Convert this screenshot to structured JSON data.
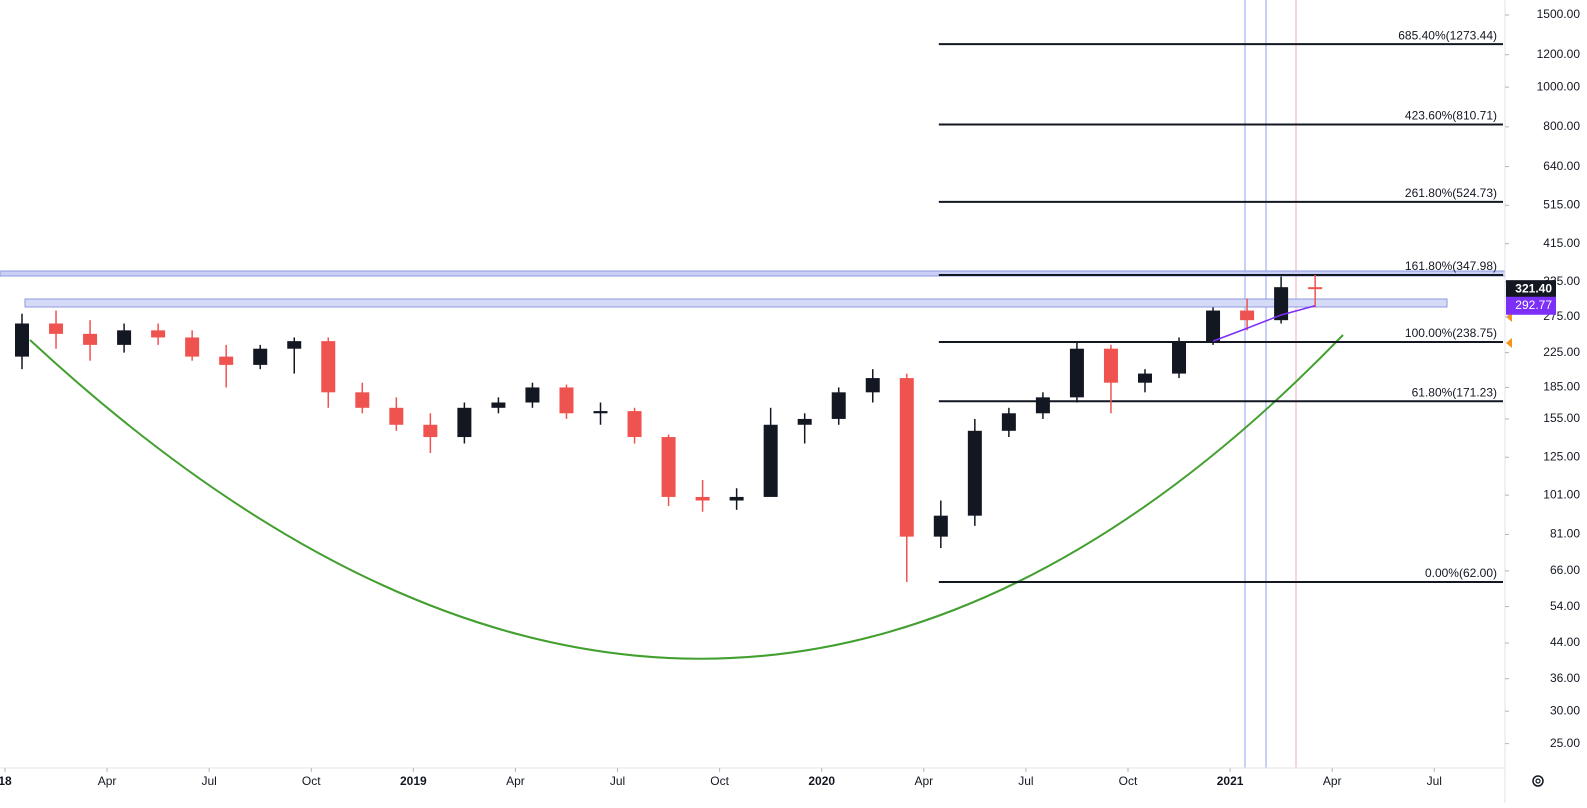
{
  "chart_data": {
    "type": "candlestick",
    "log_scale": true,
    "ylim": [
      21.8,
      1632
    ],
    "yticks": [
      {
        "value": 1500,
        "label": "1500.00"
      },
      {
        "value": 1200,
        "label": "1200.00"
      },
      {
        "value": 1000,
        "label": "1000.00"
      },
      {
        "value": 800,
        "label": "800.00"
      },
      {
        "value": 640,
        "label": "640.00"
      },
      {
        "value": 515,
        "label": "515.00"
      },
      {
        "value": 415,
        "label": "415.00"
      },
      {
        "value": 335,
        "label": "335.00"
      },
      {
        "value": 275,
        "label": "275.00"
      },
      {
        "value": 225,
        "label": "225.00"
      },
      {
        "value": 185,
        "label": "185.00"
      },
      {
        "value": 155,
        "label": "155.00"
      },
      {
        "value": 125,
        "label": "125.00"
      },
      {
        "value": 101,
        "label": "101.00"
      },
      {
        "value": 81,
        "label": "81.00"
      },
      {
        "value": 66,
        "label": "66.00"
      },
      {
        "value": 54,
        "label": "54.00"
      },
      {
        "value": 44,
        "label": "44.00"
      },
      {
        "value": 36,
        "label": "36.00"
      },
      {
        "value": 30,
        "label": "30.00"
      },
      {
        "value": 25,
        "label": "25.00"
      }
    ],
    "xticks": [
      {
        "value": "2018-01",
        "label": "18"
      },
      {
        "value": "2018-04",
        "label": "Apr"
      },
      {
        "value": "2018-07",
        "label": "Jul"
      },
      {
        "value": "2018-10",
        "label": "Oct"
      },
      {
        "value": "2019-01",
        "label": "2019"
      },
      {
        "value": "2019-04",
        "label": "Apr"
      },
      {
        "value": "2019-07",
        "label": "Jul"
      },
      {
        "value": "2019-10",
        "label": "Oct"
      },
      {
        "value": "2020-01",
        "label": "2020"
      },
      {
        "value": "2020-04",
        "label": "Apr"
      },
      {
        "value": "2020-07",
        "label": "Jul"
      },
      {
        "value": "2020-10",
        "label": "Oct"
      },
      {
        "value": "2021-01",
        "label": "2021"
      },
      {
        "value": "2021-04",
        "label": "Apr"
      },
      {
        "value": "2021-07",
        "label": "Jul"
      }
    ],
    "up_color": "#131722",
    "down_color": "#ef5350",
    "x": [
      "2018-01",
      "2018-02",
      "2018-03",
      "2018-04",
      "2018-05",
      "2018-06",
      "2018-07",
      "2018-08",
      "2018-09",
      "2018-10",
      "2018-11",
      "2018-12",
      "2019-01",
      "2019-02",
      "2019-03",
      "2019-04",
      "2019-05",
      "2019-06",
      "2019-07",
      "2019-08",
      "2019-09",
      "2019-10",
      "2019-11",
      "2019-12",
      "2020-01",
      "2020-02",
      "2020-03",
      "2020-04",
      "2020-05",
      "2020-06",
      "2020-07",
      "2020-08",
      "2020-09",
      "2020-10",
      "2020-11",
      "2020-12",
      "2021-01",
      "2021-02",
      "2021-03"
    ],
    "open": [
      220,
      265,
      250,
      235,
      255,
      245,
      220,
      210,
      230,
      240,
      180,
      165,
      150,
      140,
      165,
      170,
      185,
      160,
      162,
      140,
      100,
      98,
      100,
      150,
      155,
      180,
      195,
      80,
      90,
      145,
      160,
      175,
      230,
      190,
      200,
      240,
      285,
      270,
      325
    ],
    "high": [
      280,
      285,
      270,
      265,
      265,
      255,
      235,
      235,
      245,
      245,
      190,
      175,
      160,
      170,
      175,
      190,
      188,
      170,
      165,
      142,
      110,
      105,
      165,
      160,
      185,
      205,
      200,
      98,
      155,
      165,
      180,
      240,
      235,
      205,
      245,
      290,
      305,
      345,
      348
    ],
    "low": [
      205,
      230,
      215,
      225,
      235,
      215,
      185,
      205,
      200,
      165,
      160,
      145,
      128,
      135,
      160,
      165,
      155,
      150,
      135,
      95,
      92,
      93,
      100,
      135,
      150,
      170,
      62,
      75,
      85,
      140,
      155,
      170,
      160,
      180,
      195,
      235,
      255,
      265,
      290
    ],
    "close": [
      265,
      250,
      235,
      255,
      245,
      220,
      210,
      230,
      240,
      180,
      165,
      150,
      140,
      165,
      170,
      185,
      160,
      162,
      140,
      100,
      98,
      100,
      150,
      155,
      180,
      195,
      80,
      90,
      145,
      160,
      175,
      230,
      190,
      200,
      240,
      285,
      270,
      325,
      321.4
    ],
    "close_label": "321.40",
    "ma": {
      "color": "#7b2ff7",
      "x": [
        "2020-12",
        "2021-01",
        "2021-02",
        "2021-03"
      ],
      "values": [
        240,
        258,
        278,
        292.77
      ],
      "last_label": "292.77"
    },
    "fib": {
      "color": "#131722",
      "start": "2020-04",
      "levels": [
        {
          "value": 1273.44,
          "label": "685.40%(1273.44)"
        },
        {
          "value": 810.71,
          "label": "423.60%(810.71)"
        },
        {
          "value": 524.73,
          "label": "261.80%(524.73)"
        },
        {
          "value": 347.98,
          "label": "161.80%(347.98)"
        },
        {
          "value": 238.75,
          "label": "100.00%(238.75)"
        },
        {
          "value": 171.23,
          "label": "61.80%(171.23)"
        },
        {
          "value": 62.0,
          "label": "0.00%(62.00)"
        }
      ]
    }
  }
}
